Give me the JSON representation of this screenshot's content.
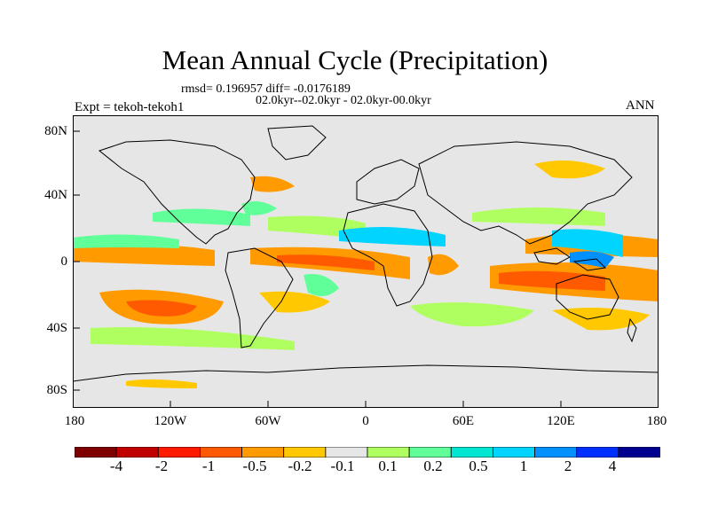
{
  "title": "Mean Annual Cycle (Precipitation)",
  "stats_line": "rmsd= 0.196957 diff= -0.0176189",
  "period_line": "02.0kyr--02.0kyr - 02.0kyr-00.0kyr",
  "experiment_label": "Expt = tekoh-tekoh1",
  "season_label": "ANN",
  "map": {
    "y_axis_labels": [
      "80N",
      "40N",
      "0",
      "40S",
      "80S"
    ],
    "x_axis_labels": [
      "180",
      "120W",
      "60W",
      "0",
      "60E",
      "120E",
      "180"
    ],
    "background_color": "#e6e6e6"
  },
  "colorbar": {
    "colors": [
      "#7f0000",
      "#c00000",
      "#ff1a00",
      "#ff5a00",
      "#ff9a00",
      "#ffc800",
      "#e6e6e6",
      "#b0ff60",
      "#60ff99",
      "#00e6d2",
      "#00d4ff",
      "#0090ff",
      "#0030ff",
      "#000090"
    ],
    "tick_labels": [
      "-4",
      "-2",
      "-1",
      "-0.5",
      "-0.2",
      "-0.1",
      "0.1",
      "0.2",
      "0.5",
      "1",
      "2",
      "4"
    ]
  },
  "icons": [
    "world-coastline-icon"
  ]
}
